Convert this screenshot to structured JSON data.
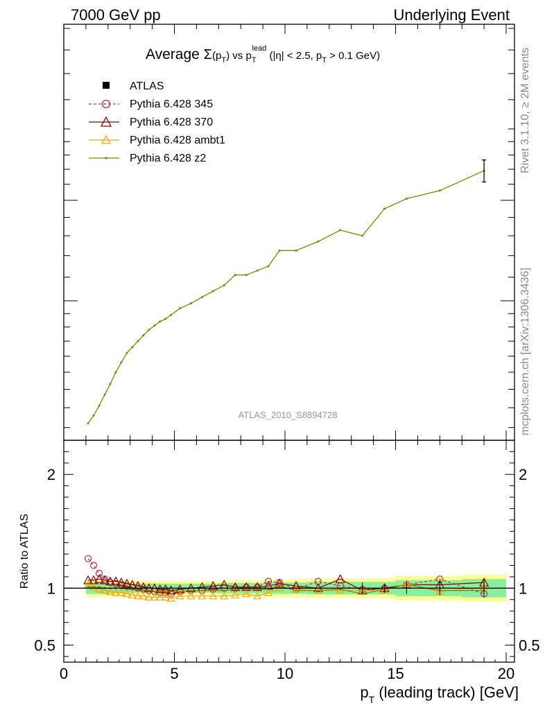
{
  "header": {
    "left": "7000 GeV pp",
    "right": "Underlying Event"
  },
  "side": {
    "top": "Rivet 3.1.10, ≥ 2M events",
    "bottom": "mcplots.cern.ch [arXiv:1306.3436]"
  },
  "chart_data": [
    {
      "type": "line",
      "panel": "main",
      "title": "Average Σ(pT) vs pT lead (|η| < 2.5, pT > 0.1 GeV)",
      "watermark": "ATLAS_2010_S8894728",
      "xlim": [
        0,
        20
      ],
      "ylabel": "",
      "y_scale": "log",
      "y_tick_labels": "none",
      "legend_position": "top-left",
      "legend": [
        {
          "name": "ATLAS",
          "color": "#000000",
          "marker": "square"
        },
        {
          "name": "Pythia 6.428 345",
          "color": "#b03050",
          "marker": "open-circle",
          "style": "dashed"
        },
        {
          "name": "Pythia 6.428 370",
          "color": "#8b0000",
          "marker": "open-triangle",
          "style": "solid"
        },
        {
          "name": "Pythia 6.428 ambt1",
          "color": "#ffa500",
          "marker": "open-triangle",
          "style": "solid"
        },
        {
          "name": "Pythia 6.428 z2",
          "color": "#808000",
          "marker": "dot",
          "style": "solid"
        }
      ],
      "series": [
        {
          "name": "Pythia 6.428 z2",
          "x": [
            1.1,
            1.35,
            1.6,
            1.85,
            2.1,
            2.35,
            2.6,
            2.85,
            3.1,
            3.35,
            3.6,
            3.85,
            4.1,
            4.35,
            4.6,
            4.85,
            5.25,
            5.75,
            6.25,
            6.75,
            7.25,
            7.75,
            8.25,
            8.75,
            9.25,
            9.75,
            10.5,
            11.5,
            12.5,
            13.5,
            14.5,
            15.5,
            17.0,
            19.0
          ],
          "y": [
            1.22,
            1.26,
            1.31,
            1.37,
            1.43,
            1.5,
            1.56,
            1.62,
            1.66,
            1.7,
            1.74,
            1.78,
            1.81,
            1.84,
            1.86,
            1.89,
            1.94,
            1.98,
            2.03,
            2.08,
            2.13,
            2.22,
            2.22,
            2.26,
            2.3,
            2.45,
            2.45,
            2.54,
            2.66,
            2.6,
            2.9,
            3.02,
            3.12,
            3.38
          ],
          "yerr_last": 0.15
        }
      ]
    },
    {
      "type": "line",
      "panel": "ratio",
      "ylabel": "Ratio to ATLAS",
      "xlabel": "pT (leading track) [GeV]",
      "xlim": [
        0,
        20
      ],
      "ylim": [
        0.35,
        2.3
      ],
      "x_ticks": [
        0,
        5,
        10,
        15,
        20
      ],
      "y_ticks": [
        0.5,
        1,
        2
      ],
      "reference": 1,
      "band_inner": [
        [
          1.0,
          1.5,
          0.05
        ],
        [
          1.5,
          2.0,
          0.05
        ],
        [
          2.0,
          3.0,
          0.045
        ],
        [
          3.0,
          5.0,
          0.04
        ],
        [
          5.0,
          7.0,
          0.04
        ],
        [
          7.0,
          9.0,
          0.045
        ],
        [
          9.0,
          11.0,
          0.05
        ],
        [
          11.0,
          14.0,
          0.055
        ],
        [
          14.0,
          15.0,
          0.055
        ],
        [
          15.0,
          18.0,
          0.07
        ],
        [
          18.0,
          20.0,
          0.08
        ]
      ],
      "band_outer": [
        [
          1.0,
          1.5,
          0.08
        ],
        [
          1.5,
          2.0,
          0.075
        ],
        [
          2.0,
          3.0,
          0.07
        ],
        [
          3.0,
          5.0,
          0.065
        ],
        [
          5.0,
          7.0,
          0.065
        ],
        [
          7.0,
          9.0,
          0.07
        ],
        [
          9.0,
          11.0,
          0.08
        ],
        [
          11.0,
          14.0,
          0.085
        ],
        [
          14.0,
          15.0,
          0.09
        ],
        [
          15.0,
          18.0,
          0.11
        ],
        [
          18.0,
          20.0,
          0.12
        ]
      ],
      "series": [
        {
          "name": "Pythia 6.428 345",
          "x": [
            1.1,
            1.35,
            1.6,
            1.85,
            2.1,
            2.35,
            2.6,
            2.85,
            3.1,
            3.35,
            3.6,
            3.85,
            4.1,
            4.35,
            4.6,
            4.85,
            5.25,
            5.75,
            6.25,
            6.75,
            7.25,
            7.75,
            8.25,
            8.75,
            9.25,
            9.75,
            10.5,
            11.5,
            12.5,
            13.5,
            14.5,
            15.5,
            17.0,
            19.0
          ],
          "y": [
            1.26,
            1.2,
            1.13,
            1.08,
            1.05,
            1.04,
            1.03,
            1.02,
            1.01,
            1.0,
            0.99,
            0.98,
            0.97,
            0.96,
            0.96,
            0.95,
            0.97,
            0.98,
            0.98,
            0.99,
            1.0,
            1.0,
            1.01,
            1.01,
            1.06,
            1.05,
            0.99,
            1.06,
            1.02,
            0.99,
            1.0,
            1.03,
            1.08,
            0.95
          ]
        },
        {
          "name": "Pythia 6.428 370",
          "x": [
            1.1,
            1.35,
            1.6,
            1.85,
            2.1,
            2.35,
            2.6,
            2.85,
            3.1,
            3.35,
            3.6,
            3.85,
            4.1,
            4.35,
            4.6,
            4.85,
            5.25,
            5.75,
            6.25,
            6.75,
            7.25,
            7.75,
            8.25,
            8.75,
            9.25,
            9.75,
            10.5,
            11.5,
            12.5,
            13.5,
            14.5,
            15.5,
            17.0,
            19.0
          ],
          "y": [
            1.07,
            1.07,
            1.08,
            1.07,
            1.06,
            1.06,
            1.05,
            1.04,
            1.03,
            1.02,
            1.01,
            1.0,
            1.0,
            0.99,
            0.99,
            0.98,
            0.99,
            1.0,
            1.01,
            1.02,
            1.03,
            1.01,
            1.01,
            1.01,
            1.02,
            1.04,
            1.02,
            1.0,
            1.08,
            0.98,
            1.0,
            1.03,
            1.03,
            1.05
          ]
        },
        {
          "name": "Pythia 6.428 ambt1",
          "x": [
            1.1,
            1.35,
            1.6,
            1.85,
            2.1,
            2.35,
            2.6,
            2.85,
            3.1,
            3.35,
            3.6,
            3.85,
            4.1,
            4.35,
            4.6,
            4.85,
            5.25,
            5.75,
            6.25,
            6.75,
            7.25,
            7.75,
            8.25,
            8.75,
            9.25,
            9.75,
            10.5,
            11.5,
            12.5,
            13.5,
            14.5,
            15.5,
            17.0,
            19.0
          ],
          "y": [
            1.03,
            1.01,
            0.99,
            0.98,
            0.97,
            0.96,
            0.96,
            0.95,
            0.94,
            0.93,
            0.93,
            0.92,
            0.92,
            0.92,
            0.92,
            0.91,
            0.93,
            0.93,
            0.93,
            0.93,
            0.93,
            0.94,
            0.95,
            0.93,
            0.96,
            1.0,
            0.99,
            0.98,
            0.98,
            0.98,
            0.98,
            1.04,
            0.97,
            1.01
          ]
        },
        {
          "name": "Pythia 6.428 z2",
          "x": [
            1.1,
            1.35,
            1.6,
            1.85,
            2.1,
            2.35,
            2.6,
            2.85,
            3.1,
            3.35,
            3.6,
            3.85,
            4.1,
            4.35,
            4.6,
            4.85,
            5.25,
            5.75,
            6.25,
            6.75,
            7.25,
            7.75,
            8.25,
            8.75,
            9.25,
            9.75,
            10.5,
            11.5,
            12.5,
            13.5,
            14.5,
            15.5,
            17.0,
            19.0
          ],
          "y": [
            1.01,
            1.01,
            1.01,
            1.0,
            1.0,
            1.0,
            1.0,
            0.99,
            0.99,
            0.98,
            0.98,
            0.98,
            0.97,
            0.97,
            0.97,
            0.97,
            0.97,
            0.98,
            0.98,
            0.98,
            0.98,
            0.99,
            0.99,
            0.99,
            0.99,
            1.02,
            0.98,
            0.98,
            0.99,
            0.95,
            0.99,
            1.03,
            0.98,
            0.98
          ]
        }
      ]
    }
  ]
}
